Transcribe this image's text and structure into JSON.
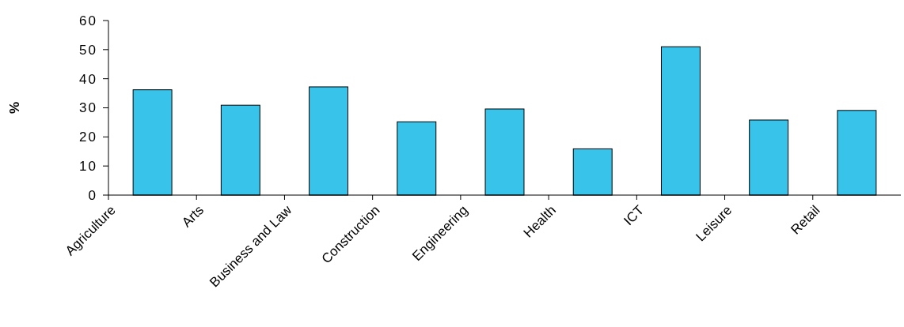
{
  "chart_data": {
    "type": "bar",
    "ylabel": "%",
    "categories": [
      "Agriculture",
      "Arts",
      "Business and Law",
      "Construction",
      "Engineering",
      "Health",
      "ICT",
      "Leisure",
      "Retail"
    ],
    "values": [
      36.2,
      30.9,
      37.2,
      25.2,
      29.6,
      15.9,
      51.0,
      25.8,
      29.1
    ],
    "color": "#38c4ea",
    "ylim": [
      0,
      60
    ],
    "yticks": [
      0,
      10,
      20,
      30,
      40,
      50,
      60
    ],
    "grid": false
  }
}
